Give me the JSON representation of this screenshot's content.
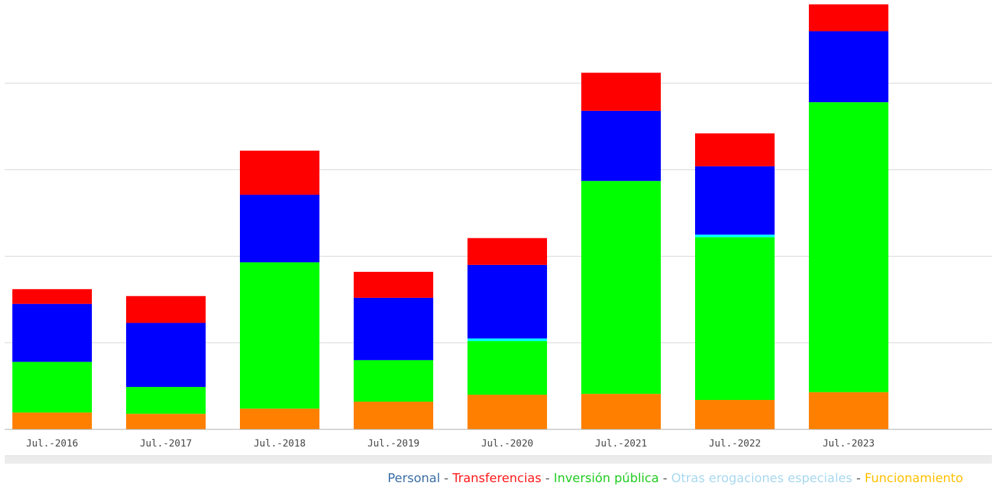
{
  "chart_data": {
    "type": "bar",
    "stacked": true,
    "categories": [
      "Jul.-2016",
      "Jul.-2017",
      "Jul.-2018",
      "Jul.-2019",
      "Jul.-2020",
      "Jul.-2021",
      "Jul.-2022",
      "Jul.-2023"
    ],
    "series": [
      {
        "name": "Funcionamiento",
        "color": "#ff8000",
        "values": [
          0.195,
          0.18,
          0.24,
          0.32,
          0.4,
          0.41,
          0.34,
          0.43
        ]
      },
      {
        "name": "Inversión pública",
        "color": "#00ff00",
        "values": [
          0.585,
          0.31,
          1.69,
          0.48,
          0.62,
          2.46,
          1.88,
          3.35
        ]
      },
      {
        "name": "Otras erogaciones especiales",
        "color": "#00ffff",
        "values": [
          0.0,
          0.0,
          0.0,
          0.0,
          0.03,
          0.0,
          0.03,
          0.0
        ]
      },
      {
        "name": "Personal",
        "color": "#0000ff",
        "values": [
          0.67,
          0.74,
          0.78,
          0.72,
          0.85,
          0.81,
          0.79,
          0.82
        ]
      },
      {
        "name": "Transferencias",
        "color": "#ff0000",
        "values": [
          0.17,
          0.31,
          0.51,
          0.3,
          0.31,
          0.44,
          0.38,
          0.31
        ]
      }
    ],
    "ylim": [
      0,
      5
    ],
    "gridlines": [
      1,
      2,
      3,
      4
    ],
    "grid": true,
    "legend_position": "bottom-right",
    "title": "",
    "xlabel": "",
    "ylabel": ""
  },
  "legend": {
    "items": [
      {
        "label": "Personal",
        "color": "#3a6ea5"
      },
      {
        "label": "Transferencias",
        "color": "#ff1a1a"
      },
      {
        "label": "Inversión pública",
        "color": "#22cc22"
      },
      {
        "label": "Otras erogaciones especiales",
        "color": "#a8d8f0"
      },
      {
        "label": "Funcionamiento",
        "color": "#ffc000"
      }
    ],
    "separator": " - "
  }
}
